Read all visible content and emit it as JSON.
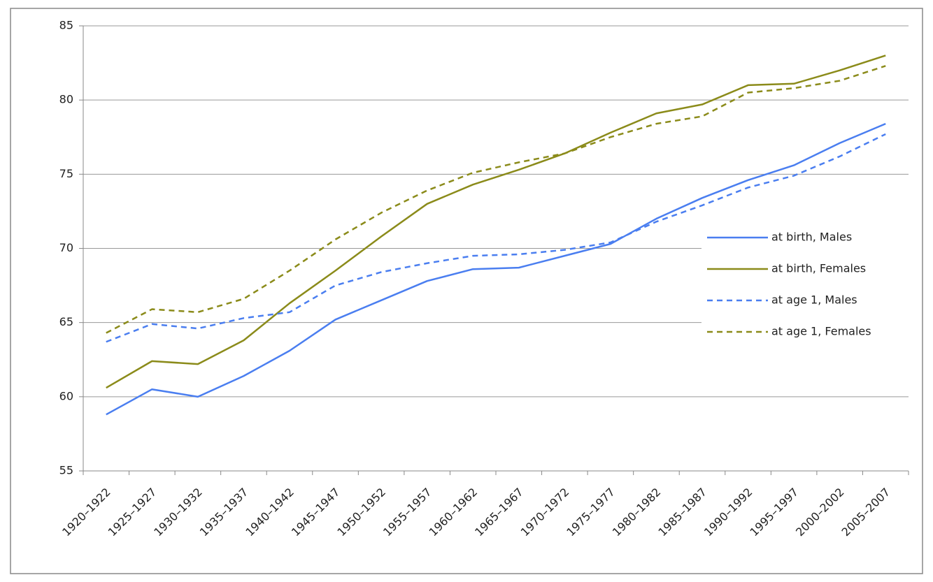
{
  "chart_data": {
    "type": "line",
    "categories": [
      "1920–1922",
      "1925–1927",
      "1930–1932",
      "1935–1937",
      "1940–1942",
      "1945–1947",
      "1950–1952",
      "1955–1957",
      "1960–1962",
      "1965–1967",
      "1970–1972",
      "1975–1977",
      "1980–1982",
      "1985–1987",
      "1990–1992",
      "1995–1997",
      "2000–2002",
      "2005–2007"
    ],
    "series": [
      {
        "name": "at birth, Males",
        "color": "#4a7ef0",
        "dash": false,
        "values": [
          58.8,
          60.5,
          60.0,
          61.4,
          63.1,
          65.2,
          66.5,
          67.8,
          68.6,
          68.7,
          69.5,
          70.3,
          72.0,
          73.4,
          74.6,
          75.6,
          77.1,
          78.4
        ]
      },
      {
        "name": "at birth, Females",
        "color": "#8b8b1a",
        "dash": false,
        "values": [
          60.6,
          62.4,
          62.2,
          63.8,
          66.3,
          68.5,
          70.8,
          73.0,
          74.3,
          75.3,
          76.4,
          77.8,
          79.1,
          79.7,
          81.0,
          81.1,
          82.0,
          83.0
        ]
      },
      {
        "name": "at age 1, Males",
        "color": "#4a7ef0",
        "dash": true,
        "values": [
          63.7,
          64.9,
          64.6,
          65.3,
          65.7,
          67.5,
          68.4,
          69.0,
          69.5,
          69.6,
          69.9,
          70.4,
          71.8,
          72.9,
          74.1,
          74.9,
          76.2,
          77.7
        ]
      },
      {
        "name": "at age 1, Females",
        "color": "#8b8b1a",
        "dash": true,
        "values": [
          64.3,
          65.9,
          65.7,
          66.6,
          68.5,
          70.6,
          72.4,
          73.9,
          75.1,
          75.8,
          76.4,
          77.5,
          78.4,
          78.9,
          80.5,
          80.8,
          81.3,
          82.3
        ]
      }
    ],
    "ylim": [
      55,
      85
    ],
    "yticks": [
      55,
      60,
      65,
      70,
      75,
      80,
      85
    ],
    "grid": true,
    "legend": "right"
  }
}
